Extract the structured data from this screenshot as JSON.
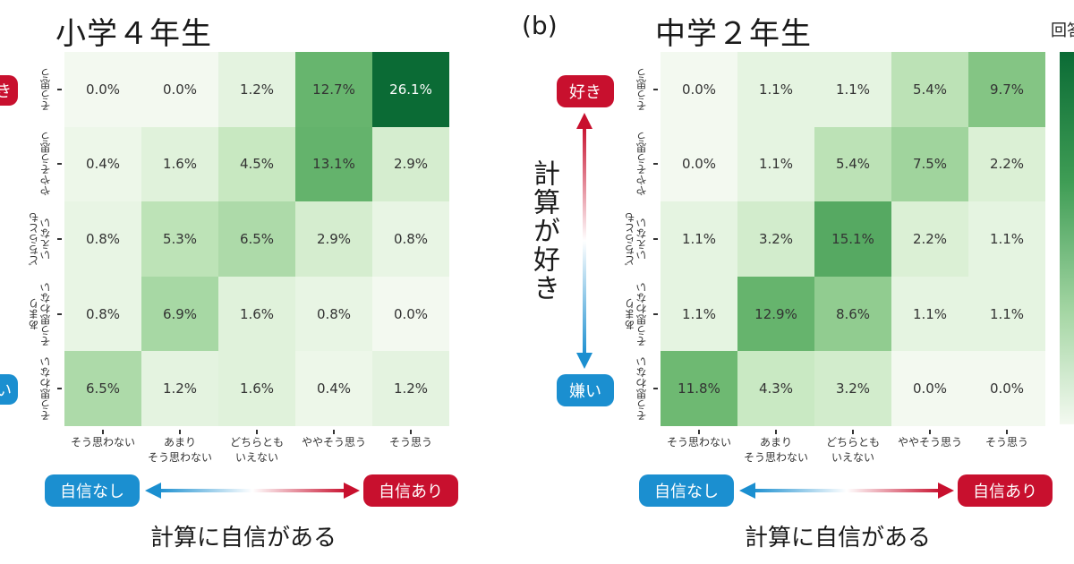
{
  "panels": [
    {
      "letter": "",
      "title": "小学４年生"
    },
    {
      "letter": "(b)",
      "title": "中学２年生"
    }
  ],
  "badges": {
    "like": "好き",
    "dislike": "嫌い",
    "no_confidence": "自信なし",
    "confidence": "自信あり"
  },
  "x_axis_title": "計算に自信がある",
  "y_axis_title": "計算が好き",
  "colorbar_title": "回答",
  "colors": {
    "blue": "#1b8fd0",
    "red": "#c8102e",
    "green_max": "#0b6b35",
    "green_min": "#f3f9f0"
  },
  "chart_data": [
    {
      "type": "heatmap",
      "title": "小学４年生",
      "xlabel": "計算に自信がある",
      "ylabel": "",
      "x_categories": [
        "そう思わない",
        "あまり\nそう思わない",
        "どちらとも\nいえない",
        "ややそう思う",
        "そう思う"
      ],
      "y_categories": [
        "そう思う",
        "ややそう思う",
        "どちらとも\nいえない",
        "あまり\nそう思わない",
        "そう思わない"
      ],
      "values": [
        [
          0.0,
          0.0,
          1.2,
          12.7,
          26.1
        ],
        [
          0.4,
          1.6,
          4.5,
          13.1,
          2.9
        ],
        [
          0.8,
          5.3,
          6.5,
          2.9,
          0.8
        ],
        [
          0.8,
          6.9,
          1.6,
          0.8,
          0.0
        ],
        [
          6.5,
          1.2,
          1.6,
          0.4,
          1.2
        ]
      ],
      "labels": [
        [
          "0.0%",
          "0.0%",
          "1.2%",
          "12.7%",
          "26.1%"
        ],
        [
          "0.4%",
          "1.6%",
          "4.5%",
          "13.1%",
          "2.9%"
        ],
        [
          "0.8%",
          "5.3%",
          "6.5%",
          "2.9%",
          "0.8%"
        ],
        [
          "0.8%",
          "6.9%",
          "1.6%",
          "0.8%",
          "0.0%"
        ],
        [
          "6.5%",
          "1.2%",
          "1.6%",
          "0.4%",
          "1.2%"
        ]
      ],
      "color_range": [
        0,
        26.1
      ]
    },
    {
      "type": "heatmap",
      "title": "中学２年生",
      "xlabel": "計算に自信がある",
      "ylabel": "計算が好き",
      "x_categories": [
        "そう思わない",
        "あまり\nそう思わない",
        "どちらとも\nいえない",
        "ややそう思う",
        "そう思う"
      ],
      "y_categories": [
        "そう思う",
        "ややそう思う",
        "どちらとも\nいえない",
        "あまり\nそう思わない",
        "そう思わない"
      ],
      "values": [
        [
          0.0,
          1.1,
          1.1,
          5.4,
          9.7
        ],
        [
          0.0,
          1.1,
          5.4,
          7.5,
          2.2
        ],
        [
          1.1,
          3.2,
          15.1,
          2.2,
          1.1
        ],
        [
          1.1,
          12.9,
          8.6,
          1.1,
          1.1
        ],
        [
          11.8,
          4.3,
          3.2,
          0.0,
          0.0
        ]
      ],
      "labels": [
        [
          "0.0%",
          "1.1%",
          "1.1%",
          "5.4%",
          "9.7%"
        ],
        [
          "0.0%",
          "1.1%",
          "5.4%",
          "7.5%",
          "2.2%"
        ],
        [
          "1.1%",
          "3.2%",
          "15.1%",
          "2.2%",
          "1.1%"
        ],
        [
          "1.1%",
          "12.9%",
          "8.6%",
          "1.1%",
          "1.1%"
        ],
        [
          "11.8%",
          "4.3%",
          "3.2%",
          "0.0%",
          "0.0%"
        ]
      ],
      "color_range": [
        0,
        26.1
      ]
    }
  ]
}
